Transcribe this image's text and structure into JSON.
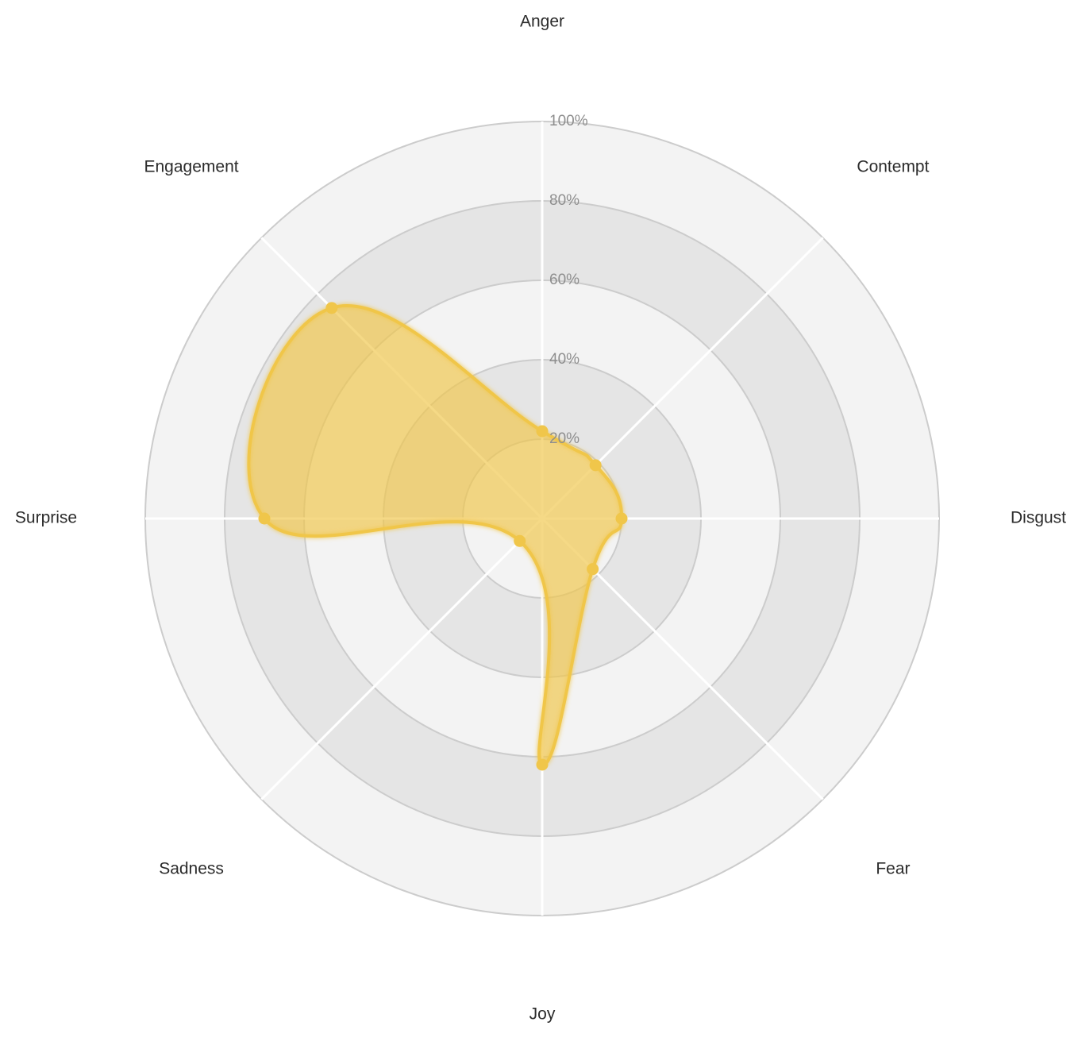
{
  "chart_data": {
    "type": "radar",
    "title": "",
    "categories": [
      "Anger",
      "Contempt",
      "Disgust",
      "Fear",
      "Joy",
      "Sadness",
      "Surprise",
      "Engagement"
    ],
    "series": [
      {
        "values": [
          22,
          19,
          20,
          18,
          62,
          8,
          70,
          75
        ]
      }
    ],
    "rlim": [
      0,
      100
    ],
    "tick_values": [
      20,
      40,
      60,
      80,
      100
    ],
    "tick_labels": [
      "20%",
      "40%",
      "60%",
      "80%",
      "100%"
    ],
    "grid": true,
    "legend": "none",
    "colors": {
      "series_stroke": "#f0c64a",
      "series_fill": "rgba(240, 198, 74, 0.42)",
      "ring_band_dark": "#e5e5e5",
      "ring_band_light": "#f3f3f3",
      "ring_stroke": "#cccccc",
      "spoke": "#ffffff"
    }
  }
}
